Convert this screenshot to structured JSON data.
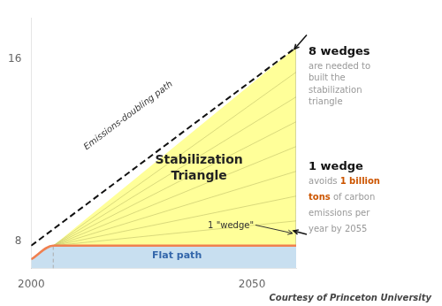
{
  "chart_data": {
    "type": "line",
    "series": [
      {
        "type": "area",
        "color": "#c8dff0",
        "x": [
          2000,
          2005,
          2060
        ],
        "values": [
          7.2,
          7.8,
          7.8
        ]
      },
      {
        "type": "polygon",
        "color": "#ffff99",
        "x": [
          2005,
          2060,
          2060
        ],
        "values": [
          7.8,
          16.5,
          7.8
        ]
      },
      {
        "type": "line",
        "color": "#c8c870",
        "x": [
          2005,
          2060
        ],
        "values": [
          7.8,
          8.8875
        ]
      },
      {
        "type": "line",
        "color": "#c8c870",
        "x": [
          2005,
          2060
        ],
        "values": [
          7.8,
          9.975
        ]
      },
      {
        "type": "line",
        "color": "#c8c870",
        "x": [
          2005,
          2060
        ],
        "values": [
          7.8,
          11.0625
        ]
      },
      {
        "type": "line",
        "color": "#c8c870",
        "x": [
          2005,
          2060
        ],
        "values": [
          7.8,
          12.15
        ]
      },
      {
        "type": "line",
        "color": "#c8c870",
        "x": [
          2005,
          2060
        ],
        "values": [
          7.8,
          13.2375
        ]
      },
      {
        "type": "line",
        "color": "#c8c870",
        "x": [
          2005,
          2060
        ],
        "values": [
          7.8,
          14.325
        ]
      },
      {
        "type": "line",
        "color": "#c8c870",
        "x": [
          2005,
          2060
        ],
        "values": [
          7.8,
          15.4125
        ]
      },
      {
        "type": "line",
        "color": "#999999",
        "x": [
          2060,
          2060
        ],
        "values": [
          7.8,
          16.5
        ]
      },
      {
        "type": "line",
        "color": "#aaaaaa",
        "line_style": "dashed",
        "x": [
          2005,
          2005
        ],
        "values": [
          6.8,
          7.8
        ]
      },
      {
        "type": "line",
        "color": "#f08050",
        "x": [
          2000,
          2005,
          2060
        ],
        "values": [
          7.2,
          7.8,
          7.8
        ]
      },
      {
        "type": "line",
        "color": "#111111",
        "line_style": "dashed",
        "x": [
          2000,
          2060
        ],
        "values": [
          7.8,
          16.5
        ]
      }
    ],
    "xlim": [
      2000,
      2060
    ],
    "xticks": [
      2000,
      2050
    ],
    "ylim": [
      6.8,
      17.8
    ],
    "yticks": [
      8,
      16
    ],
    "grid": false,
    "annotations": [
      {
        "text": "Emissions-doubling path",
        "color": "#333333"
      },
      {
        "text": "Stabilization\nTriangle",
        "color": "#222222"
      },
      {
        "text": "1 \"wedge\"",
        "color": "#333333"
      },
      {
        "text": "Flat path",
        "color": "#3366aa"
      },
      {
        "text": "8 wedges",
        "color": "#111111"
      },
      {
        "text": "are needed to\nbuilt the\nstabilization\ntriangle",
        "color": "#999999"
      },
      {
        "text": "1 wedge",
        "color": "#111111"
      },
      {
        "runs": [
          {
            "text": "avoids ",
            "color": "#999999"
          },
          {
            "text": "1 billion\ntons",
            "color": "#cc5500"
          },
          {
            "text": " of carbon\nemissions per\nyear by 2055",
            "color": "#999999"
          }
        ]
      },
      {
        "text": "Courtesy of Princeton University",
        "color": "#444444"
      }
    ]
  }
}
